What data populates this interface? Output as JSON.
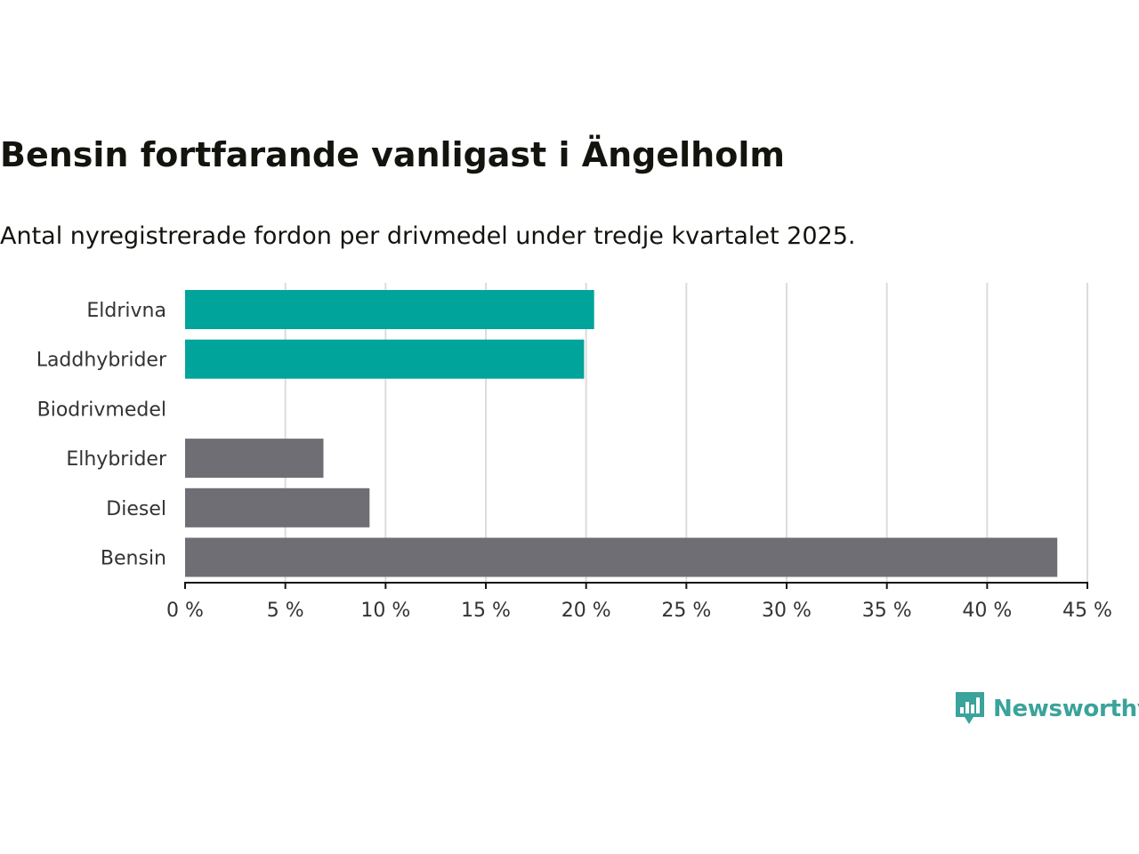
{
  "title": "Bensin fortfarande vanligast i Ängelholm",
  "subtitle": "Antal nyregistrerade fordon per drivmedel under tredje kvartalet 2025.",
  "brand": {
    "name": "Newsworthy",
    "icon": "newsworthy-logo-icon",
    "color": "#3aa39b"
  },
  "colors": {
    "highlight": "#00a49a",
    "default": "#6f6e74",
    "grid": "#dcdcdc",
    "axis": "#14140f",
    "text": "#333333"
  },
  "chart_data": {
    "type": "bar",
    "orientation": "horizontal",
    "title": "Bensin fortfarande vanligast i Ängelholm",
    "subtitle": "Antal nyregistrerade fordon per drivmedel under tredje kvartalet 2025.",
    "xlabel": "",
    "ylabel": "",
    "categories": [
      "Eldrivna",
      "Laddhybrider",
      "Biodrivmedel",
      "Elhybrider",
      "Diesel",
      "Bensin"
    ],
    "values": [
      20.4,
      19.9,
      0,
      6.9,
      9.2,
      43.5
    ],
    "highlighted": [
      true,
      true,
      false,
      false,
      false,
      false
    ],
    "xlim": [
      0,
      45
    ],
    "ticks": [
      0,
      5,
      10,
      15,
      20,
      25,
      30,
      35,
      40,
      45
    ],
    "tick_labels": [
      "0 %",
      "5 %",
      "10 %",
      "15 %",
      "20 %",
      "25 %",
      "30 %",
      "35 %",
      "40 %",
      "45 %"
    ],
    "grid": true,
    "legend": "none"
  }
}
